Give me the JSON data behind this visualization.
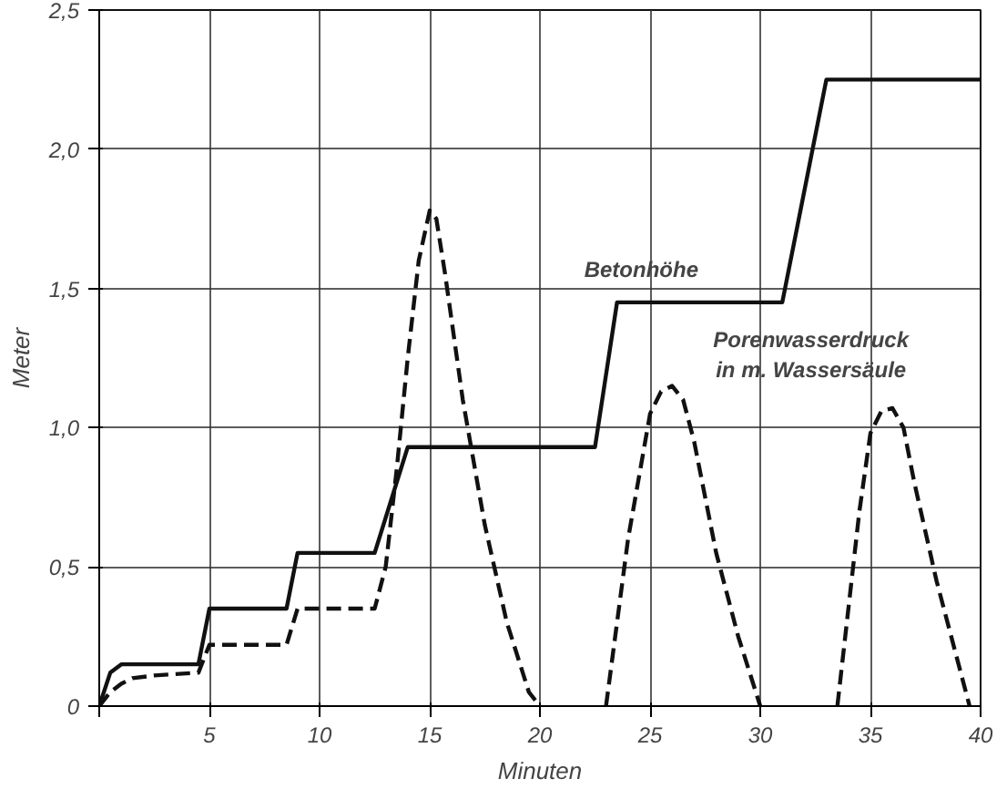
{
  "chart_data": {
    "type": "line",
    "xlabel": "Minuten",
    "ylabel": "Meter",
    "xlim": [
      0,
      40
    ],
    "ylim": [
      0,
      2.5
    ],
    "xticks": [
      {
        "value": 0,
        "label": null
      },
      5,
      10,
      15,
      20,
      25,
      30,
      35,
      40
    ],
    "yticks": [
      {
        "value": 0,
        "label": "0"
      },
      {
        "value": 0.5,
        "label": "0,5"
      },
      {
        "value": 1,
        "label": "1,0"
      },
      {
        "value": 1.5,
        "label": "1,5"
      },
      {
        "value": 2,
        "label": "2,0"
      },
      {
        "value": 2.5,
        "label": "2,5"
      }
    ],
    "grid": true,
    "marker": "none",
    "series": [
      {
        "color": "#111111",
        "line_style": "solid",
        "x": [
          0,
          0.5,
          1,
          4.5,
          5,
          8.5,
          9,
          12.5,
          14,
          22.5,
          23.5,
          31,
          33,
          40
        ],
        "values": [
          0,
          0.12,
          0.15,
          0.15,
          0.35,
          0.35,
          0.55,
          0.55,
          0.93,
          0.93,
          1.45,
          1.45,
          2.25,
          2.25
        ]
      },
      {
        "color": "#111111",
        "line_style": "dashed",
        "x": [
          0,
          0.5,
          1,
          1.5,
          2.5,
          4.5,
          5,
          8.5,
          9,
          12.5,
          13,
          13.5,
          14,
          14.5,
          15,
          15.3,
          15.7,
          16.5,
          17.5,
          18.5,
          19.5,
          20,
          20.5,
          23,
          24,
          25,
          25.5,
          26,
          26.5,
          27,
          28,
          29,
          30,
          30.5,
          33.5,
          34.5,
          35,
          35.5,
          36,
          36.5,
          37,
          38,
          39,
          39.5
        ],
        "values": [
          0,
          0.05,
          0.08,
          0.1,
          0.11,
          0.12,
          0.22,
          0.22,
          0.35,
          0.35,
          0.5,
          0.85,
          1.25,
          1.6,
          1.78,
          1.75,
          1.55,
          1.1,
          0.65,
          0.3,
          0.05,
          0,
          null,
          0,
          0.6,
          1.05,
          1.13,
          1.15,
          1.1,
          0.95,
          0.55,
          0.25,
          0,
          null,
          0,
          0.7,
          0.98,
          1.06,
          1.07,
          1.0,
          0.8,
          0.45,
          0.15,
          0
        ]
      }
    ],
    "annotations": [
      "Betonhöhe",
      "Porenwasserdruck\nin m. Wassersäule"
    ]
  }
}
